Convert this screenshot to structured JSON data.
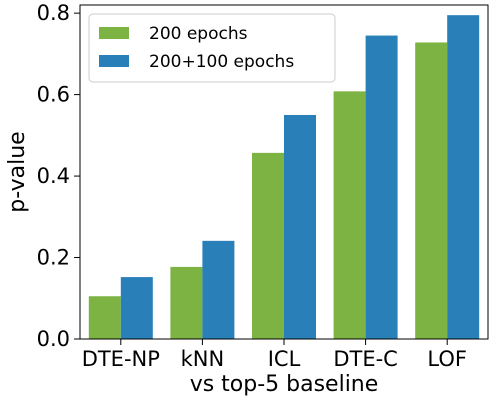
{
  "chart_data": {
    "type": "bar",
    "title": "",
    "xlabel": "vs top-5 baseline",
    "ylabel": "p-value",
    "categories": [
      "DTE-NP",
      "kNN",
      "ICL",
      "DTE-C",
      "LOF"
    ],
    "series": [
      {
        "name": "200 epochs",
        "color": "#7cb342",
        "values": [
          0.105,
          0.177,
          0.457,
          0.608,
          0.728
        ]
      },
      {
        "name": "200+100 epochs",
        "color": "#2980b9",
        "values": [
          0.152,
          0.241,
          0.55,
          0.745,
          0.795
        ]
      }
    ],
    "ylim": [
      0,
      0.82
    ],
    "yticks": [
      0.0,
      0.2,
      0.4,
      0.6,
      0.8
    ],
    "ytick_labels": [
      "0.0",
      "0.2",
      "0.4",
      "0.6",
      "0.8"
    ],
    "grid": false,
    "legend_position": "top-left"
  }
}
